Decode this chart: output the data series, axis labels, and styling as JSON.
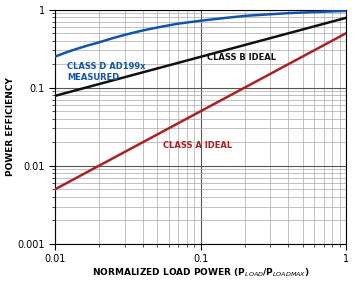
{
  "xlim": [
    0.01,
    1
  ],
  "ylim": [
    0.001,
    1
  ],
  "ylabel": "POWER EFFICIENCY",
  "bg_color": "#ffffff",
  "class_b_color": "#111111",
  "class_a_color": "#aa2222",
  "class_d_color": "#1155aa",
  "label_class_b": "CLASS B IDEAL",
  "label_class_a": "CLASS A IDEAL",
  "label_class_d": "CLASS D AD199x\nMEASURED",
  "major_grid_color": "#555555",
  "minor_grid_color": "#aaaaaa",
  "major_grid_lw": 0.8,
  "minor_grid_lw": 0.5,
  "line_width": 1.8,
  "class_d_x_pts": [
    0.01,
    0.02,
    0.04,
    0.07,
    0.1,
    0.2,
    0.4,
    0.7,
    1.0
  ],
  "class_d_y_pts": [
    0.25,
    0.38,
    0.54,
    0.66,
    0.72,
    0.83,
    0.9,
    0.94,
    0.96
  ]
}
